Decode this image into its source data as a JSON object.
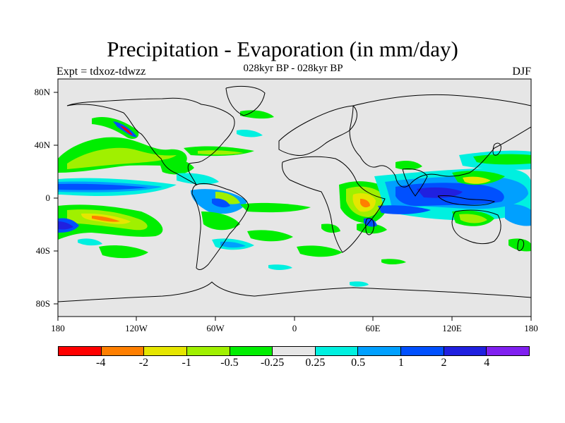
{
  "header": {
    "title": "Precipitation - Evaporation (in mm/day)",
    "subtitle": "028kyr BP - 028kyr BP",
    "experiment": "Expt = tdxoz-tdwzz",
    "season": "DJF"
  },
  "map": {
    "background_color": "#e6e6e6",
    "lat_labels": [
      "80N",
      "40N",
      "0",
      "40S",
      "80S"
    ],
    "lon_labels": [
      "180",
      "120W",
      "60W",
      "0",
      "60E",
      "120E",
      "180"
    ]
  },
  "colorbar": {
    "colors": [
      "#ff0000",
      "#ff7f00",
      "#e6e600",
      "#a0f000",
      "#00ee00",
      "#e6e6e6",
      "#00f0e0",
      "#00a0ff",
      "#0050ff",
      "#2020e0",
      "#8020f0"
    ],
    "labels": [
      "-4",
      "-2",
      "-1",
      "-0.5",
      "-0.25",
      "0.25",
      "0.5",
      "1",
      "2",
      "4"
    ]
  }
}
